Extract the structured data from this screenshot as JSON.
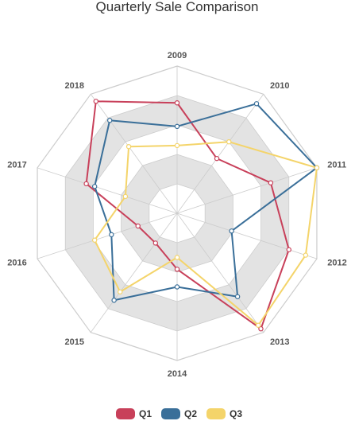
{
  "chart_data": {
    "type": "radar",
    "title": "Quarterly Sale Comparison",
    "categories": [
      "2009",
      "2010",
      "2011",
      "2012",
      "2013",
      "2014",
      "2015",
      "2016",
      "2017",
      "2018"
    ],
    "range": [
      0,
      100
    ],
    "ring_levels": 5,
    "series": [
      {
        "name": "Q1",
        "color": "#c8405a",
        "values": [
          75,
          46,
          67,
          80,
          97,
          38,
          25,
          28,
          65,
          94
        ]
      },
      {
        "name": "Q2",
        "color": "#3a6f99",
        "values": [
          59,
          92,
          100,
          39,
          70,
          50,
          73,
          47,
          59,
          78
        ]
      },
      {
        "name": "Q3",
        "color": "#f4d46a",
        "values": [
          46,
          60,
          100,
          92,
          94,
          30,
          66,
          59,
          37,
          56
        ]
      }
    ],
    "colors": {
      "band": "#e3e3e3",
      "grid": "#cccccc",
      "point_fill": "#ffffff"
    },
    "legend_placement": "bottom"
  }
}
